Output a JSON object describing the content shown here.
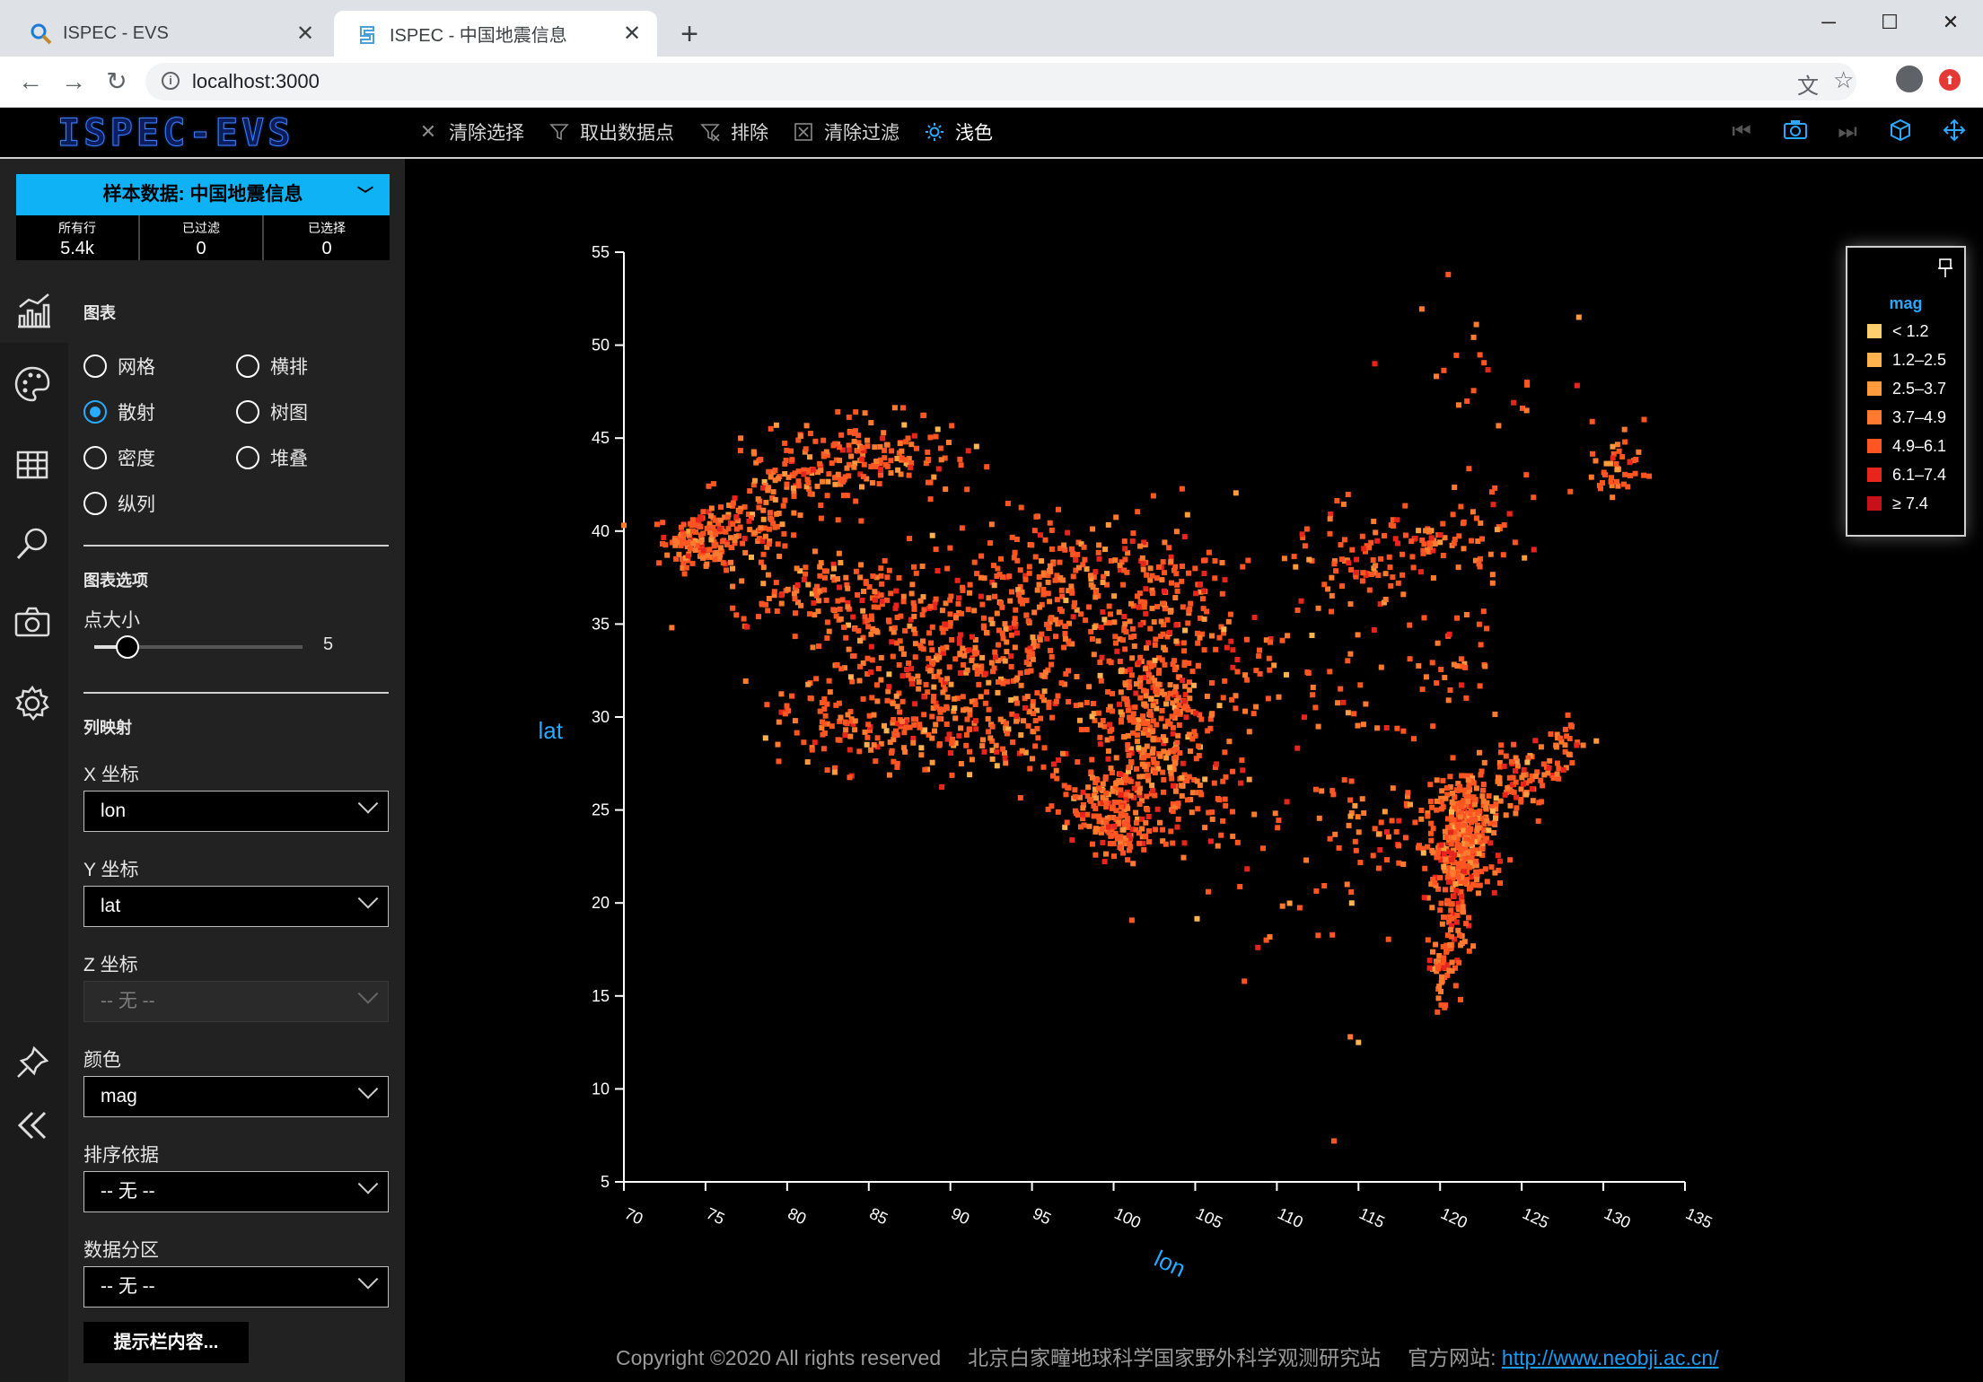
{
  "browser": {
    "tabs": [
      {
        "title": "ISPEC - EVS",
        "active": false,
        "icon": "search-icon"
      },
      {
        "title": "ISPEC - 中国地震信息",
        "active": true,
        "icon": "site-icon"
      }
    ],
    "url": "localhost:3000"
  },
  "app": {
    "logo": "ISPEC-EVS",
    "toolbar": [
      {
        "label": "清除选择",
        "icon": "close-icon",
        "active": false
      },
      {
        "label": "取出数据点",
        "icon": "filter-icon",
        "active": false
      },
      {
        "label": "排除",
        "icon": "filter-exclude-icon",
        "active": false
      },
      {
        "label": "清除过滤",
        "icon": "close-box-icon",
        "active": false
      },
      {
        "label": "浅色",
        "icon": "sun-icon",
        "active": true
      }
    ]
  },
  "sidebar": {
    "dataset_label": "样本数据: 中国地震信息",
    "stats": [
      {
        "label": "所有行",
        "value": "5.4k"
      },
      {
        "label": "已过滤",
        "value": "0"
      },
      {
        "label": "已选择",
        "value": "0"
      }
    ],
    "chart_section": "图表",
    "chart_types": [
      {
        "label": "网格",
        "selected": false
      },
      {
        "label": "横排",
        "selected": false
      },
      {
        "label": "散射",
        "selected": true
      },
      {
        "label": "树图",
        "selected": false
      },
      {
        "label": "密度",
        "selected": false
      },
      {
        "label": "堆叠",
        "selected": false
      },
      {
        "label": "纵列",
        "selected": false
      }
    ],
    "options_section": "图表选项",
    "point_size_label": "点大小",
    "point_size_value": "5",
    "point_size_fraction": 0.1,
    "mapping_section": "列映射",
    "x_label": "X 坐标",
    "x_value": "lon",
    "y_label": "Y 坐标",
    "y_value": "lat",
    "z_label": "Z 坐标",
    "z_value": "-- 无 --",
    "color_label": "颜色",
    "color_value": "mag",
    "sort_label": "排序依据",
    "sort_value": "-- 无 --",
    "partition_label": "数据分区",
    "partition_value": "-- 无 --",
    "tooltip_button": "提示栏内容..."
  },
  "chart_data": {
    "type": "scatter",
    "xlabel": "lon",
    "ylabel": "lat",
    "xlim": [
      70,
      135
    ],
    "ylim": [
      5,
      55
    ],
    "xticks": [
      70,
      75,
      80,
      85,
      90,
      95,
      100,
      105,
      110,
      115,
      120,
      125,
      130,
      135
    ],
    "yticks": [
      5,
      10,
      15,
      20,
      25,
      30,
      35,
      40,
      45,
      50,
      55
    ],
    "legend": {
      "title": "mag",
      "placement": "top-right",
      "items": [
        {
          "label": "< 1.2",
          "color": "#ffcf6e"
        },
        {
          "label": "1.2–2.5",
          "color": "#ffb34f"
        },
        {
          "label": "2.5–3.7",
          "color": "#ff9a3d"
        },
        {
          "label": "3.7–4.9",
          "color": "#ff7a2e"
        },
        {
          "label": "4.9–6.1",
          "color": "#ff5522"
        },
        {
          "label": "6.1–7.4",
          "color": "#e8251c"
        },
        {
          "label": "≥ 7.4",
          "color": "#c8101a"
        }
      ]
    },
    "clusters": [
      {
        "lon": 74.5,
        "lat": 39.5,
        "sx": 1.2,
        "sy": 0.8,
        "n": 140
      },
      {
        "lon": 77.5,
        "lat": 40.5,
        "sx": 1.5,
        "sy": 0.8,
        "n": 70
      },
      {
        "lon": 80.5,
        "lat": 43.0,
        "sx": 2.0,
        "sy": 1.2,
        "n": 90
      },
      {
        "lon": 84.5,
        "lat": 44.2,
        "sx": 2.2,
        "sy": 0.9,
        "n": 100
      },
      {
        "lon": 88.5,
        "lat": 44.0,
        "sx": 1.5,
        "sy": 1.0,
        "n": 40
      },
      {
        "lon": 82.0,
        "lat": 36.5,
        "sx": 3.0,
        "sy": 1.2,
        "n": 120
      },
      {
        "lon": 88.0,
        "lat": 34.0,
        "sx": 3.5,
        "sy": 2.0,
        "n": 220
      },
      {
        "lon": 94.0,
        "lat": 34.5,
        "sx": 3.0,
        "sy": 2.0,
        "n": 160
      },
      {
        "lon": 98.0,
        "lat": 38.0,
        "sx": 3.0,
        "sy": 1.5,
        "n": 110
      },
      {
        "lon": 103.0,
        "lat": 36.5,
        "sx": 2.5,
        "sy": 2.0,
        "n": 140
      },
      {
        "lon": 85.0,
        "lat": 29.5,
        "sx": 3.5,
        "sy": 1.2,
        "n": 150
      },
      {
        "lon": 93.0,
        "lat": 29.5,
        "sx": 3.0,
        "sy": 1.5,
        "n": 120
      },
      {
        "lon": 101.5,
        "lat": 30.5,
        "sx": 2.0,
        "sy": 2.0,
        "n": 180
      },
      {
        "lon": 103.5,
        "lat": 28.5,
        "sx": 1.5,
        "sy": 2.5,
        "n": 160
      },
      {
        "lon": 100.0,
        "lat": 25.5,
        "sx": 1.8,
        "sy": 1.0,
        "n": 150
      },
      {
        "lon": 100.5,
        "lat": 23.5,
        "sx": 1.0,
        "sy": 0.8,
        "n": 60
      },
      {
        "lon": 106.0,
        "lat": 25.5,
        "sx": 2.5,
        "sy": 1.5,
        "n": 40
      },
      {
        "lon": 107.0,
        "lat": 33.0,
        "sx": 3.0,
        "sy": 1.5,
        "n": 40
      },
      {
        "lon": 113.0,
        "lat": 32.0,
        "sx": 3.5,
        "sy": 3.0,
        "n": 50
      },
      {
        "lon": 115.0,
        "lat": 38.5,
        "sx": 2.5,
        "sy": 1.5,
        "n": 80
      },
      {
        "lon": 119.0,
        "lat": 39.5,
        "sx": 1.0,
        "sy": 0.5,
        "n": 30
      },
      {
        "lon": 123.0,
        "lat": 40.0,
        "sx": 1.8,
        "sy": 1.5,
        "n": 40
      },
      {
        "lon": 121.0,
        "lat": 33.0,
        "sx": 1.5,
        "sy": 2.0,
        "n": 30
      },
      {
        "lon": 116.0,
        "lat": 24.0,
        "sx": 2.5,
        "sy": 1.5,
        "n": 60
      },
      {
        "lon": 121.5,
        "lat": 23.8,
        "sx": 0.9,
        "sy": 1.5,
        "n": 350
      },
      {
        "lon": 120.8,
        "lat": 20.5,
        "sx": 0.6,
        "sy": 1.8,
        "n": 110
      },
      {
        "lon": 120.0,
        "lat": 16.5,
        "sx": 0.4,
        "sy": 1.2,
        "n": 40
      },
      {
        "lon": 125.0,
        "lat": 26.5,
        "sx": 1.2,
        "sy": 1.0,
        "n": 80
      },
      {
        "lon": 127.5,
        "lat": 28.5,
        "sx": 0.8,
        "sy": 0.8,
        "n": 30
      },
      {
        "lon": 131.0,
        "lat": 43.5,
        "sx": 0.8,
        "sy": 0.8,
        "n": 40
      },
      {
        "lon": 123.0,
        "lat": 49.0,
        "sx": 3.0,
        "sy": 2.0,
        "n": 20
      },
      {
        "lon": 110.0,
        "lat": 20.0,
        "sx": 3.0,
        "sy": 2.0,
        "n": 20
      }
    ],
    "single_points": [
      {
        "lon": 120.5,
        "lat": 53.8
      },
      {
        "lon": 113.5,
        "lat": 7.2
      },
      {
        "lon": 115.0,
        "lat": 12.5
      },
      {
        "lon": 114.5,
        "lat": 12.8
      },
      {
        "lon": 128.5,
        "lat": 51.5
      },
      {
        "lon": 116.0,
        "lat": 49.0
      },
      {
        "lon": 132.5,
        "lat": 46.0
      }
    ]
  },
  "footer": {
    "copyright": "Copyright ©2020 All rights reserved",
    "org": "北京白家疃地球科学国家野外科学观测研究站",
    "site_label": "官方网站:",
    "site_url": "http://www.neobji.ac.cn/"
  }
}
